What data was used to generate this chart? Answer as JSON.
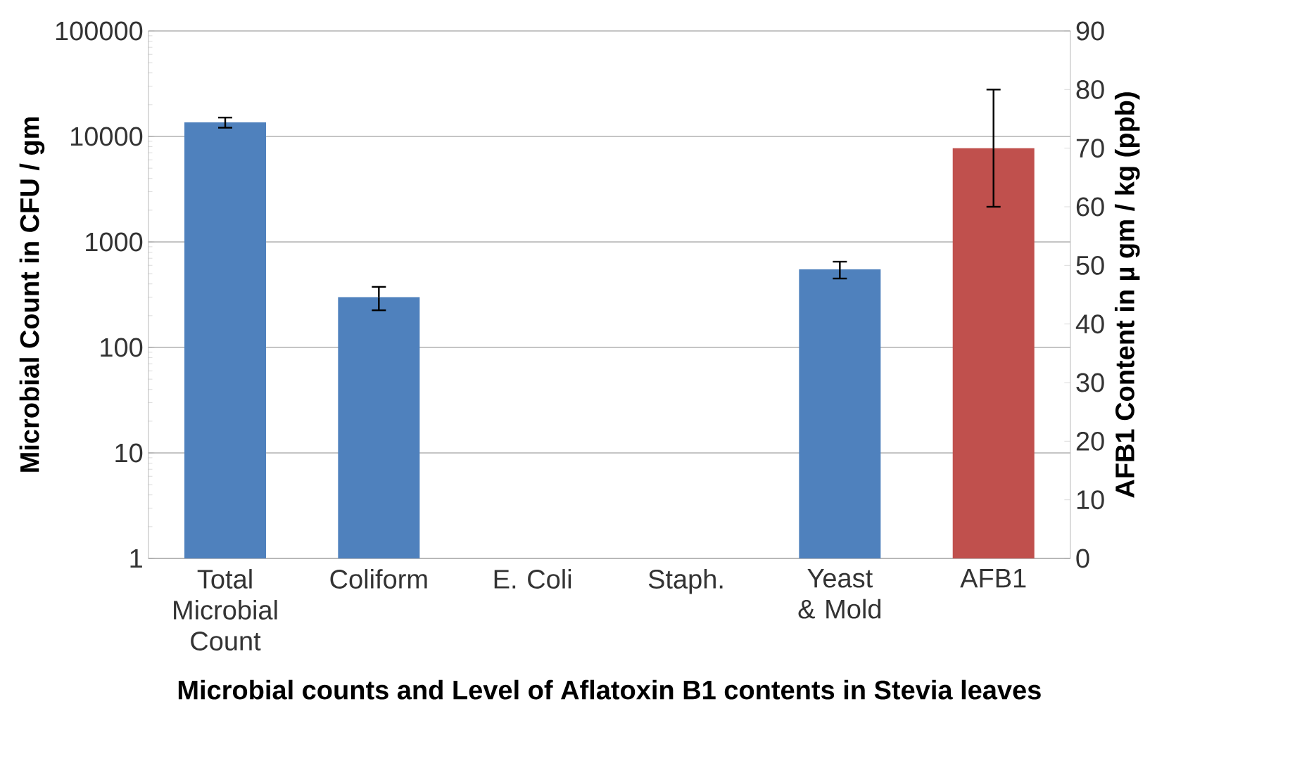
{
  "chart_data": {
    "type": "bar",
    "xlabel": "Microbial counts and Level of Aflatoxin B1 contents in Stevia leaves",
    "ylabel": "Microbial Count in CFU / gm",
    "y2label": "AFB1 Content in µ gm / kg (ppb)",
    "categories": [
      "Total Microbial Count",
      "Coliform",
      "E. Coli",
      "Staph.",
      "Yeast & Mold",
      "AFB1"
    ],
    "series": [
      {
        "color": "#4f81bd",
        "values": [
          13600,
          300,
          null,
          null,
          550,
          null
        ],
        "errors": [
          1500,
          75,
          null,
          null,
          100,
          null
        ]
      },
      {
        "color": "#c0504d",
        "axis": "y2",
        "values": [
          null,
          null,
          null,
          null,
          null,
          70
        ],
        "errors": [
          null,
          null,
          null,
          null,
          null,
          10
        ]
      }
    ],
    "log": "y",
    "grid": "y",
    "ylim": [
      1,
      100000
    ],
    "yticks": [
      1,
      10,
      100,
      1000,
      10000,
      100000
    ],
    "y2lim": [
      0,
      90
    ],
    "y2ticks": [
      0,
      10,
      20,
      30,
      40,
      50,
      60,
      70,
      80,
      90
    ]
  }
}
